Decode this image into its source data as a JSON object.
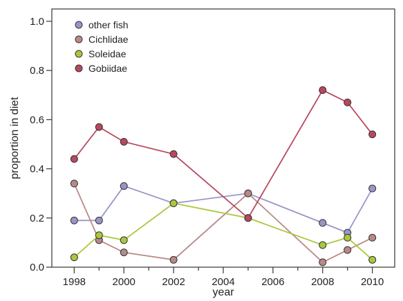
{
  "chart_data": {
    "type": "line",
    "title": "",
    "xlabel": "year",
    "ylabel": "proportion in diet",
    "xlim": [
      1997.1,
      2010.9
    ],
    "ylim": [
      0,
      1.05
    ],
    "x_ticks": [
      1998,
      2000,
      2002,
      2004,
      2006,
      2008,
      2010
    ],
    "x_minor_ticks": [
      1999,
      2001,
      2003,
      2005,
      2007,
      2009
    ],
    "x_tick_labels": [
      "1998",
      "2000",
      "2002",
      "2004",
      "2006",
      "2008",
      "2010"
    ],
    "y_ticks": [
      0.0,
      0.2,
      0.4,
      0.6,
      0.8,
      1.0
    ],
    "y_tick_labels": [
      "0.0",
      "0.2",
      "0.4",
      "0.6",
      "0.8",
      "1.0"
    ],
    "grid": false,
    "legend_position": "top-left",
    "series": [
      {
        "name": "other fish",
        "color": "#9896c6",
        "points": [
          [
            1998,
            0.19
          ],
          [
            1999,
            0.19
          ],
          [
            2000,
            0.33
          ],
          [
            2002,
            0.26
          ],
          [
            2005,
            0.3
          ],
          [
            2008,
            0.18
          ],
          [
            2009,
            0.14
          ],
          [
            2010,
            0.32
          ]
        ]
      },
      {
        "name": "Cichlidae",
        "color": "#b78a87",
        "points": [
          [
            1998,
            0.34
          ],
          [
            1999,
            0.11
          ],
          [
            2000,
            0.06
          ],
          [
            2002,
            0.03
          ],
          [
            2005,
            0.3
          ],
          [
            2008,
            0.02
          ],
          [
            2009,
            0.07
          ],
          [
            2010,
            0.12
          ]
        ]
      },
      {
        "name": "Soleidae",
        "color": "#a9c83c",
        "points": [
          [
            1998,
            0.04
          ],
          [
            1999,
            0.13
          ],
          [
            2000,
            0.11
          ],
          [
            2002,
            0.26
          ],
          [
            2005,
            0.2
          ],
          [
            2008,
            0.09
          ],
          [
            2009,
            0.12
          ],
          [
            2010,
            0.03
          ]
        ]
      },
      {
        "name": "Gobiidae",
        "color": "#b8485e",
        "points": [
          [
            1998,
            0.44
          ],
          [
            1999,
            0.57
          ],
          [
            2000,
            0.51
          ],
          [
            2002,
            0.46
          ],
          [
            2005,
            0.2
          ],
          [
            2008,
            0.72
          ],
          [
            2009,
            0.67
          ],
          [
            2010,
            0.54
          ]
        ]
      }
    ]
  }
}
